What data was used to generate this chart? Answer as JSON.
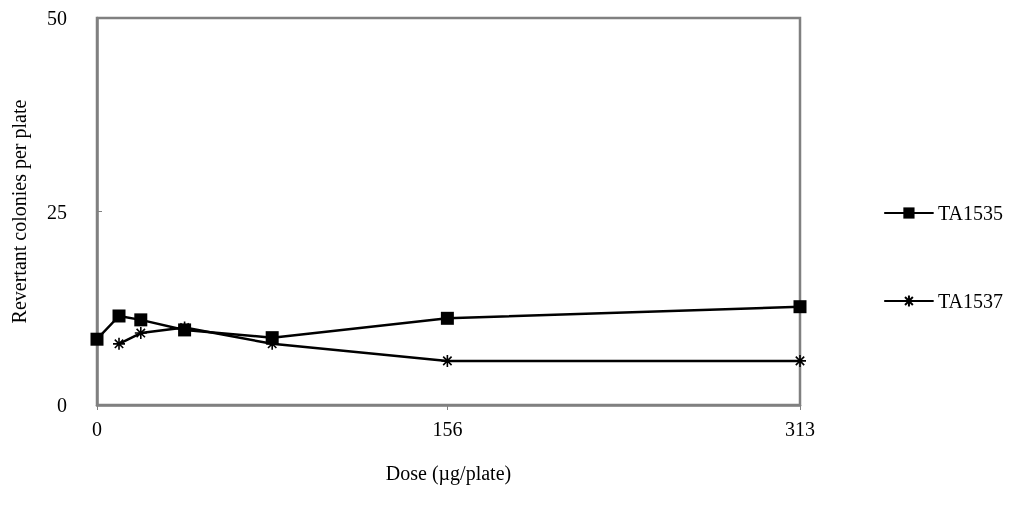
{
  "chart_data": {
    "type": "line",
    "xlabel": "Dose (µg/plate)",
    "ylabel": "Revertant colonies per plate",
    "x": [
      0,
      9.8,
      19.5,
      39,
      78,
      156,
      313
    ],
    "series": [
      {
        "name": "TA1535",
        "color": "#000000",
        "marker": "square",
        "values": [
          8.5,
          11.5,
          11,
          9.7,
          8.7,
          11.2,
          12.7
        ]
      },
      {
        "name": "TA1537",
        "color": "#000000",
        "marker": "cross",
        "values": [
          null,
          7.9,
          9.3,
          10,
          7.9,
          5.7,
          5.7
        ]
      }
    ],
    "xlim": [
      0,
      313
    ],
    "xticks": [
      0,
      156,
      313
    ],
    "ylim": [
      0,
      50
    ],
    "yticks": [
      0,
      25,
      50
    ],
    "grid": false,
    "legend": "right",
    "line_style": "solid"
  }
}
